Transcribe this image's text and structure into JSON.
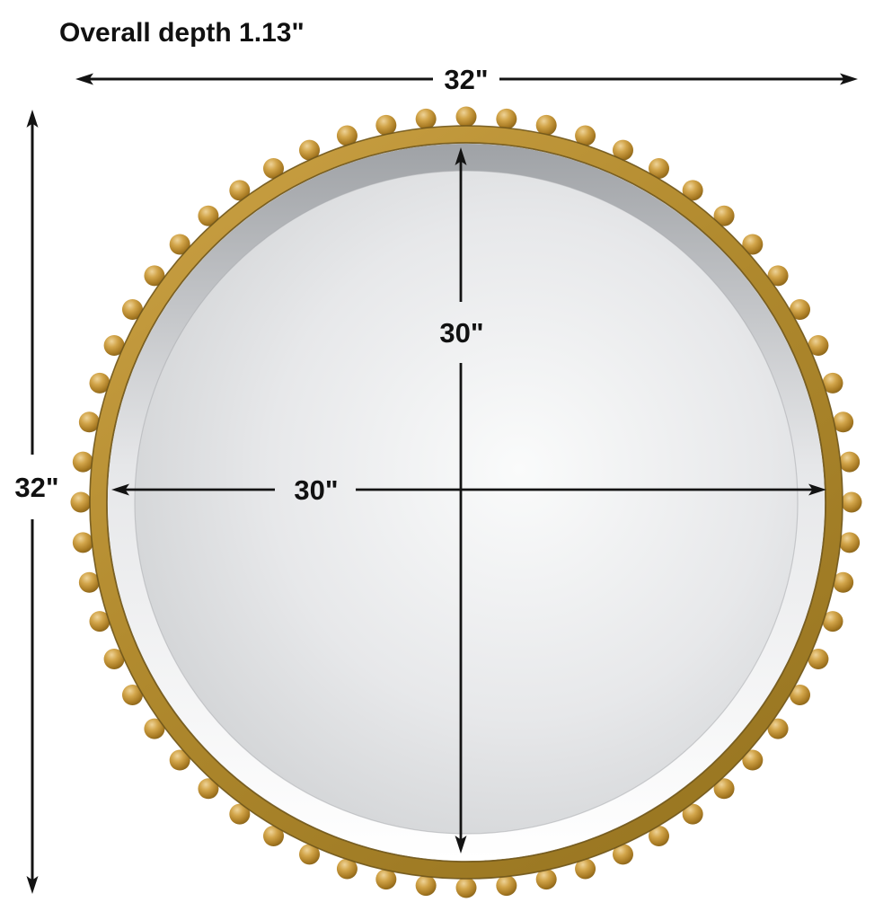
{
  "diagram": {
    "title": "Overall depth 1.13\"",
    "dimensions": {
      "overall_width": "32\"",
      "overall_height": "32\"",
      "mirror_width": "30\"",
      "mirror_height": "30\""
    },
    "bead_count": 60,
    "colors": {
      "line": "#131313",
      "bead_highlight": "#eed398",
      "bead_light": "#d2a54a",
      "bead_mid": "#aa7c24",
      "bead_dark": "#7a5916",
      "ring_light": "#cda346",
      "ring_mid": "#b18a2e",
      "ring_dark": "#9a7722",
      "ring_edge": "#6f551a",
      "bevel_top": "#9fa2a6",
      "bevel_mid": "#e6e7e9",
      "bevel_bottom": "#ffffff",
      "glass_center": "#fafbfb",
      "glass_mid": "#e7e8ea",
      "glass_outer": "#cfd1d3",
      "glass_edge": "#c5c7c9"
    }
  }
}
